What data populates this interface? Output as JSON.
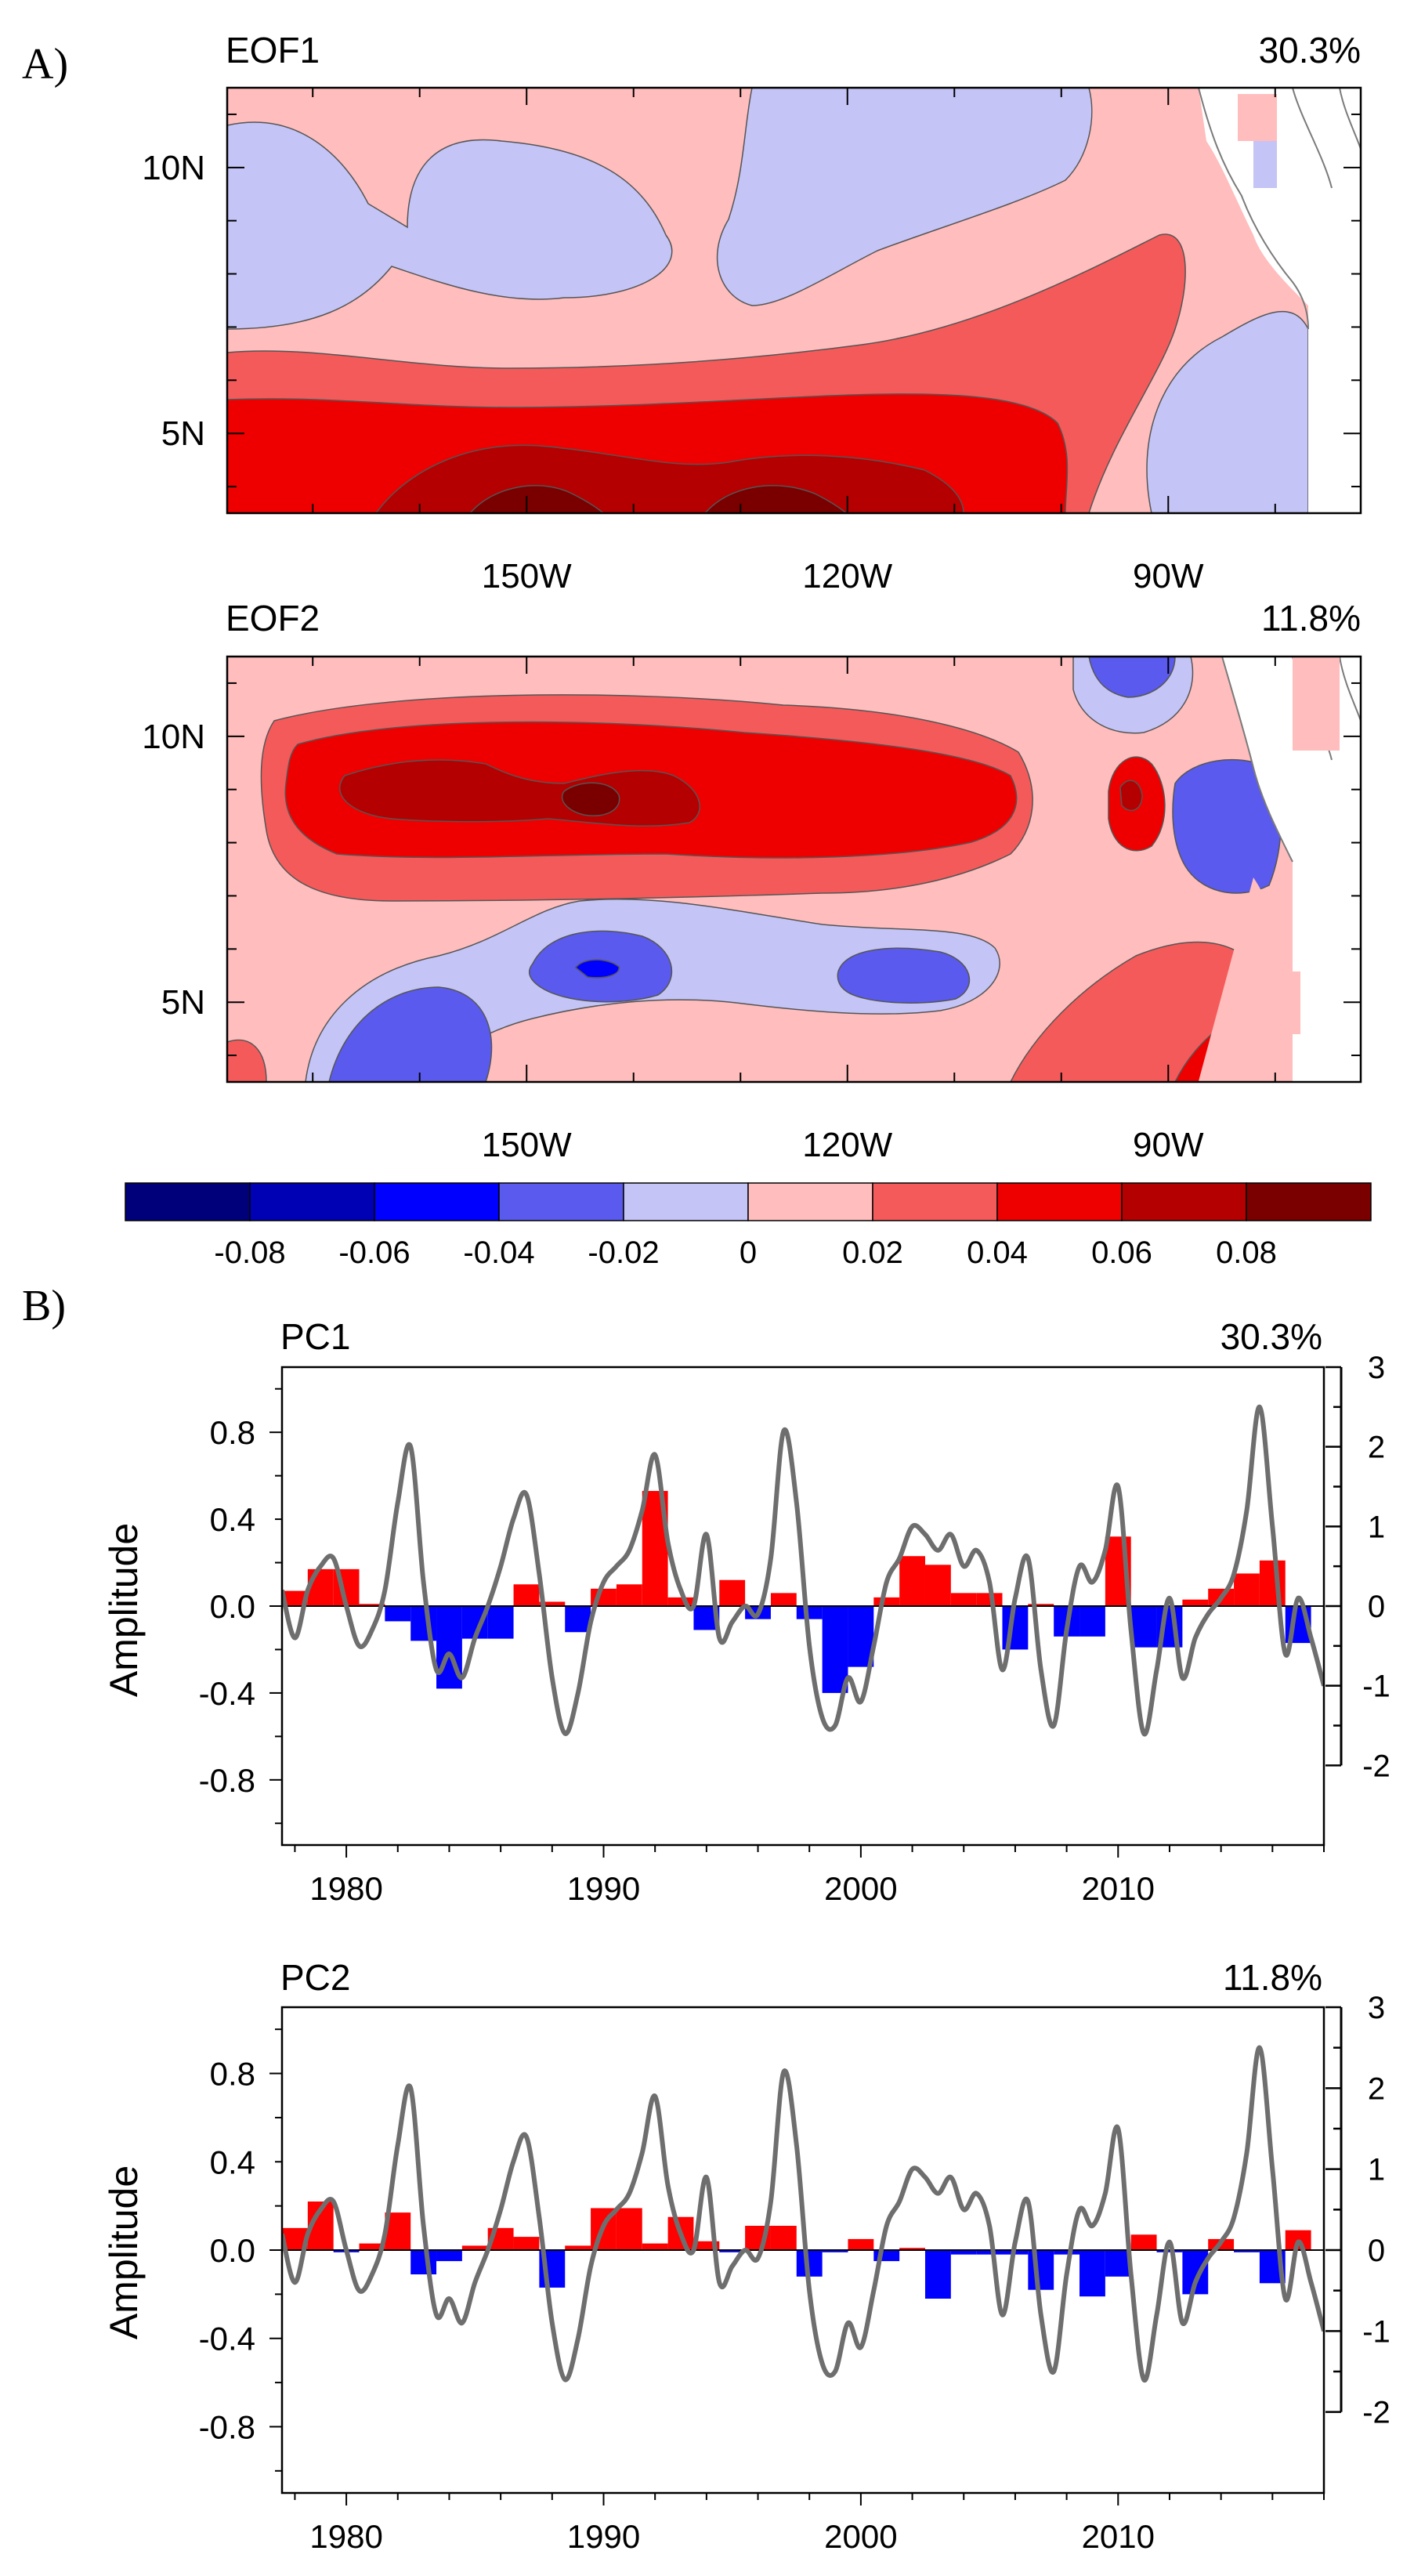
{
  "panel_labels": {
    "a": "A)",
    "b": "B)"
  },
  "colors": {
    "positive_bar": "#ff0000",
    "negative_bar": "#0000ff",
    "curve": "#6e6e6e",
    "coast": "#7a7a7a",
    "levels": [
      "#00007a",
      "#0000b4",
      "#0000ff",
      "#5a5aee",
      "#c4c4f6",
      "#ffbdbd",
      "#f55a5a",
      "#ee0000",
      "#b40000",
      "#7a0000"
    ]
  },
  "colorbar": {
    "tick_labels": [
      "-0.08",
      "-0.06",
      "-0.04",
      "-0.02",
      "0",
      "0.02",
      "0.04",
      "0.06",
      "0.08"
    ],
    "levels": [
      -0.08,
      -0.06,
      -0.04,
      -0.02,
      0,
      0.02,
      0.04,
      0.06,
      0.08
    ]
  },
  "chart_data": [
    {
      "type": "heatmap",
      "title": "EOF1",
      "variance": "30.3%",
      "x_ticks": [
        {
          "value": -150,
          "label": "150W"
        },
        {
          "value": -120,
          "label": "120W"
        },
        {
          "value": -90,
          "label": "90W"
        }
      ],
      "y_ticks": [
        {
          "value": 10,
          "label": "10N"
        },
        {
          "value": 5,
          "label": "5N"
        }
      ],
      "xlim": [
        -178,
        -72
      ],
      "ylim": [
        3.5,
        11.5
      ]
    },
    {
      "type": "heatmap",
      "title": "EOF2",
      "variance": "11.8%",
      "x_ticks": [
        {
          "value": -150,
          "label": "150W"
        },
        {
          "value": -120,
          "label": "120W"
        },
        {
          "value": -90,
          "label": "90W"
        }
      ],
      "y_ticks": [
        {
          "value": 10,
          "label": "10N"
        },
        {
          "value": 5,
          "label": "5N"
        }
      ],
      "xlim": [
        -178,
        -72
      ],
      "ylim": [
        3.5,
        11.5
      ]
    },
    {
      "type": "bar",
      "title": "PC1",
      "variance": "30.3%",
      "ylabel": "Amplitude",
      "xlim": [
        1977.5,
        2018
      ],
      "ylim": [
        -1.1,
        1.1
      ],
      "y_ticks": [
        0.8,
        0.4,
        0.0,
        -0.4,
        -0.8
      ],
      "y_tick_labels": [
        "0.8",
        "0.4",
        "0.0",
        "-0.4",
        "-0.8"
      ],
      "right_ylim": [
        -3.0,
        3.0
      ],
      "right_ticks": [
        3,
        2,
        1,
        0,
        -1,
        -2
      ],
      "x_ticks": [
        1980,
        1990,
        2000,
        2010
      ],
      "years": [
        1978,
        1979,
        1980,
        1981,
        1982,
        1983,
        1984,
        1985,
        1986,
        1987,
        1988,
        1989,
        1990,
        1991,
        1992,
        1993,
        1994,
        1995,
        1996,
        1997,
        1998,
        1999,
        2000,
        2001,
        2002,
        2003,
        2004,
        2005,
        2006,
        2007,
        2008,
        2009,
        2010,
        2011,
        2012,
        2013,
        2014,
        2015,
        2016,
        2017
      ],
      "values": [
        0.07,
        0.17,
        0.17,
        0.01,
        -0.07,
        -0.16,
        -0.38,
        -0.15,
        -0.15,
        0.1,
        0.02,
        -0.12,
        0.08,
        0.1,
        0.53,
        0.04,
        -0.11,
        0.12,
        -0.06,
        0.06,
        -0.06,
        -0.4,
        -0.28,
        0.04,
        0.23,
        0.19,
        0.06,
        0.06,
        -0.2,
        0.01,
        -0.14,
        -0.14,
        0.32,
        -0.19,
        -0.19,
        0.03,
        0.08,
        0.15,
        0.21,
        -0.17
      ]
    },
    {
      "type": "bar",
      "title": "PC2",
      "variance": "11.8%",
      "ylabel": "Amplitude",
      "xlim": [
        1977.5,
        2018
      ],
      "ylim": [
        -1.1,
        1.1
      ],
      "y_ticks": [
        0.8,
        0.4,
        0.0,
        -0.4,
        -0.8
      ],
      "y_tick_labels": [
        "0.8",
        "0.4",
        "0.0",
        "-0.4",
        "-0.8"
      ],
      "right_ylim": [
        -3.0,
        3.0
      ],
      "right_ticks": [
        3,
        2,
        1,
        0,
        -1,
        -2
      ],
      "x_ticks": [
        1980,
        1990,
        2000,
        2010
      ],
      "years": [
        1978,
        1979,
        1980,
        1981,
        1982,
        1983,
        1984,
        1985,
        1986,
        1987,
        1988,
        1989,
        1990,
        1991,
        1992,
        1993,
        1994,
        1995,
        1996,
        1997,
        1998,
        1999,
        2000,
        2001,
        2002,
        2003,
        2004,
        2005,
        2006,
        2007,
        2008,
        2009,
        2010,
        2011,
        2012,
        2013,
        2014,
        2015,
        2016,
        2017
      ],
      "values": [
        0.1,
        0.22,
        -0.01,
        0.03,
        0.17,
        -0.11,
        -0.05,
        0.02,
        0.1,
        0.06,
        -0.17,
        0.02,
        0.19,
        0.19,
        0.03,
        0.15,
        0.04,
        -0.01,
        0.11,
        0.11,
        -0.12,
        -0.01,
        0.05,
        -0.05,
        0.01,
        -0.22,
        -0.02,
        -0.02,
        -0.02,
        -0.18,
        -0.02,
        -0.21,
        -0.12,
        0.07,
        -0.01,
        -0.2,
        0.05,
        -0.01,
        -0.15,
        0.09
      ]
    },
    {
      "type": "line",
      "name_ref": "PC index curve (right axis)",
      "years": [
        1977.5,
        1978,
        1978.5,
        1979,
        1979.5,
        1980,
        1980.5,
        1981,
        1981.5,
        1982,
        1982.5,
        1983,
        1983.5,
        1984,
        1984.5,
        1985,
        1985.5,
        1986,
        1986.5,
        1987,
        1987.5,
        1988,
        1988.5,
        1989,
        1989.5,
        1990,
        1990.5,
        1991,
        1991.5,
        1992,
        1992.5,
        1993,
        1993.5,
        1994,
        1994.5,
        1995,
        1995.5,
        1996,
        1996.5,
        1997,
        1997.5,
        1998,
        1998.5,
        1999,
        1999.5,
        2000,
        2000.5,
        2001,
        2001.5,
        2002,
        2002.5,
        2003,
        2003.5,
        2004,
        2004.5,
        2005,
        2005.5,
        2006,
        2006.5,
        2007,
        2007.5,
        2008,
        2008.5,
        2009,
        2009.5,
        2010,
        2010.5,
        2011,
        2011.5,
        2012,
        2012.5,
        2013,
        2013.5,
        2014,
        2014.5,
        2015,
        2015.5,
        2016,
        2016.5,
        2017,
        2017.5,
        2018
      ],
      "values": [
        0.2,
        -0.4,
        0.2,
        0.5,
        0.6,
        0.0,
        -0.5,
        -0.3,
        0.2,
        1.3,
        2.0,
        0.3,
        -0.8,
        -0.6,
        -0.9,
        -0.4,
        0.0,
        0.5,
        1.1,
        1.4,
        0.4,
        -0.9,
        -1.6,
        -1.1,
        -0.2,
        0.3,
        0.5,
        0.7,
        1.2,
        1.9,
        0.8,
        0.2,
        0.0,
        0.9,
        -0.4,
        -0.2,
        0.0,
        -0.1,
        0.6,
        2.2,
        1.3,
        -0.5,
        -1.4,
        -1.5,
        -0.9,
        -1.2,
        -0.5,
        0.3,
        0.6,
        1.0,
        0.9,
        0.7,
        0.9,
        0.5,
        0.7,
        0.3,
        -0.8,
        0.1,
        0.6,
        -0.8,
        -1.5,
        -0.3,
        0.5,
        0.3,
        0.7,
        1.5,
        -0.3,
        -1.6,
        -0.8,
        0.1,
        -0.9,
        -0.4,
        -0.1,
        0.1,
        0.4,
        1.2,
        2.5,
        1.0,
        -0.6,
        0.1,
        -0.4,
        -1.0
      ]
    }
  ]
}
